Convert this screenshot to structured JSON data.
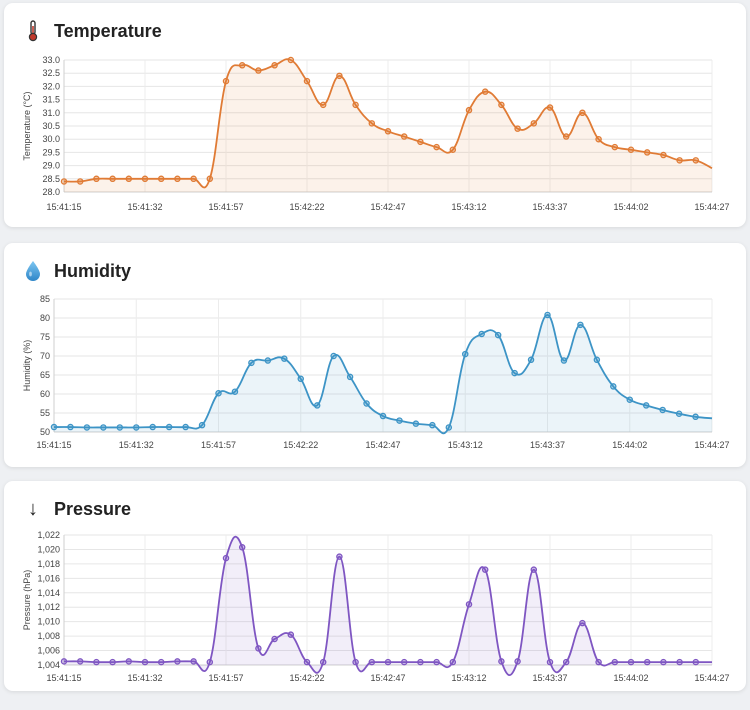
{
  "chart_data": [
    {
      "type": "line",
      "title": "Temperature",
      "icon": "thermometer-icon",
      "ylabel": "Temperature (°C)",
      "xlabel": "",
      "ylim": [
        28.0,
        33.0
      ],
      "yticks": [
        "28.0",
        "28.5",
        "29.0",
        "29.5",
        "30.0",
        "30.5",
        "31.0",
        "31.5",
        "32.0",
        "32.5",
        "33.0"
      ],
      "xticks": [
        "15:41:15",
        "15:41:32",
        "15:41:57",
        "15:42:22",
        "15:42:47",
        "15:43:12",
        "15:43:37",
        "15:44:02",
        "15:44:27"
      ],
      "color": "#e07b35",
      "fill": "rgba(224,123,53,0.10)",
      "grid": true,
      "series": [
        {
          "values": [
            28.4,
            28.4,
            28.5,
            28.5,
            28.5,
            28.5,
            28.5,
            28.5,
            28.5,
            28.5,
            32.2,
            32.8,
            32.6,
            32.8,
            33.0,
            32.2,
            31.3,
            32.4,
            31.3,
            30.6,
            30.3,
            30.1,
            29.9,
            29.7,
            29.6,
            31.1,
            31.8,
            31.3,
            30.4,
            30.6,
            31.2,
            30.1,
            31.0,
            30.0,
            29.7,
            29.6,
            29.5,
            29.4,
            29.2,
            29.2,
            28.9
          ]
        }
      ]
    },
    {
      "type": "line",
      "title": "Humidity",
      "icon": "droplet-icon",
      "ylabel": "Humidity (%)",
      "xlabel": "",
      "ylim": [
        50,
        85
      ],
      "yticks": [
        "50",
        "55",
        "60",
        "65",
        "70",
        "75",
        "80",
        "85"
      ],
      "xticks": [
        "15:41:15",
        "15:41:32",
        "15:41:57",
        "15:42:22",
        "15:42:47",
        "15:43:12",
        "15:43:37",
        "15:44:02",
        "15:44:27"
      ],
      "color": "#3d94c6",
      "fill": "rgba(61,148,198,0.10)",
      "grid": true,
      "series": [
        {
          "values": [
            51.3,
            51.3,
            51.2,
            51.2,
            51.2,
            51.2,
            51.3,
            51.3,
            51.3,
            51.8,
            60.2,
            60.6,
            68.2,
            68.8,
            69.3,
            64.0,
            57.0,
            70.0,
            64.5,
            57.5,
            54.2,
            53.0,
            52.2,
            51.8,
            51.2,
            70.5,
            75.8,
            75.5,
            65.5,
            69.0,
            80.8,
            68.8,
            78.2,
            69.0,
            62.0,
            58.5,
            57.0,
            55.8,
            54.8,
            54.0,
            53.6
          ]
        }
      ]
    },
    {
      "type": "line",
      "title": "Pressure",
      "icon": "arrow-down-icon",
      "ylabel": "Pressure (hPa)",
      "xlabel": "",
      "ylim": [
        1004,
        1022
      ],
      "yticks": [
        "1,004",
        "1,006",
        "1,008",
        "1,010",
        "1,012",
        "1,014",
        "1,016",
        "1,018",
        "1,020",
        "1,022"
      ],
      "xticks": [
        "15:41:15",
        "15:41:32",
        "15:41:57",
        "15:42:22",
        "15:42:47",
        "15:43:12",
        "15:43:37",
        "15:44:02",
        "15:44:27"
      ],
      "color": "#7f56c2",
      "fill": "rgba(127,86,194,0.10)",
      "grid": true,
      "series": [
        {
          "values": [
            1004.5,
            1004.5,
            1004.4,
            1004.4,
            1004.5,
            1004.4,
            1004.4,
            1004.5,
            1004.5,
            1004.4,
            1018.8,
            1020.3,
            1006.3,
            1007.6,
            1008.2,
            1004.4,
            1004.4,
            1019.0,
            1004.4,
            1004.4,
            1004.4,
            1004.4,
            1004.4,
            1004.4,
            1004.4,
            1012.4,
            1017.2,
            1004.5,
            1004.5,
            1017.2,
            1004.4,
            1004.4,
            1009.8,
            1004.4,
            1004.4,
            1004.4,
            1004.4,
            1004.4,
            1004.4,
            1004.4,
            1004.4
          ]
        }
      ]
    }
  ]
}
